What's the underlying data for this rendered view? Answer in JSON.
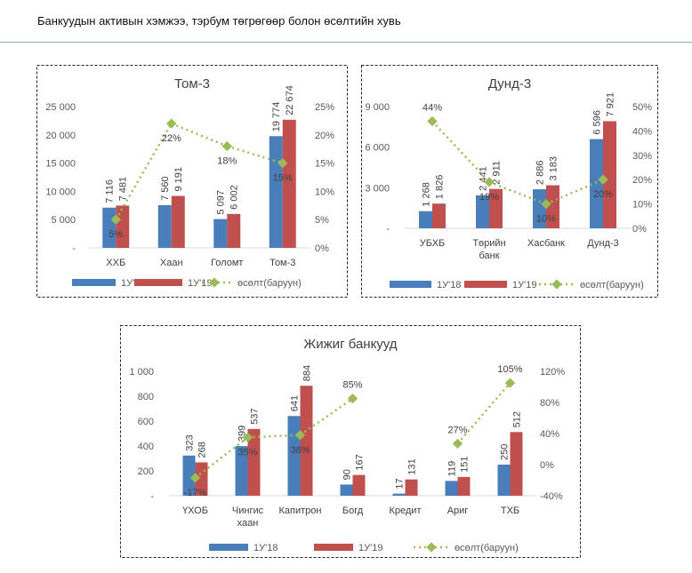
{
  "page_title": "Банкуудын активын хэмжээ, тэрбум төгрөгөөр болон өсөлтийн хувь",
  "colors": {
    "s1": "#4a7ebb",
    "s2": "#c0504d",
    "growth": "#9bbb59"
  },
  "chart_data": [
    {
      "type": "bar",
      "title": "Том-3",
      "categories": [
        [
          "ХХБ"
        ],
        [
          "Хаан"
        ],
        [
          "Голомт"
        ],
        [
          "Том-3"
        ]
      ],
      "series": [
        {
          "name": "1У'18",
          "values": [
            7116,
            7560,
            5097,
            19774
          ]
        },
        {
          "name": "1У'19",
          "values": [
            7481,
            9191,
            6002,
            22674
          ]
        },
        {
          "name": "өсөлт(баруун)",
          "type": "line",
          "axis": "right",
          "values": [
            5,
            22,
            18,
            15
          ]
        }
      ],
      "labels": {
        "s1": [
          "7 116",
          "7 560",
          "5 097",
          "19 774"
        ],
        "s2": [
          "7 481",
          "9 191",
          "6 002",
          "22 674"
        ],
        "g": [
          "5%",
          "22%",
          "18%",
          "15%"
        ]
      },
      "ylim": [
        0,
        25000
      ],
      "yticks": [
        "-",
        "5 000",
        "10 000",
        "15 000",
        "20 000",
        "25 000"
      ],
      "y2lim": [
        0,
        25
      ],
      "y2ticks": [
        "0%",
        "5%",
        "10%",
        "15%",
        "20%",
        "25%"
      ],
      "legend": "bottom"
    },
    {
      "type": "bar",
      "title": "Дунд-3",
      "categories": [
        [
          "УБХБ"
        ],
        [
          "Төрийн",
          "банк"
        ],
        [
          "Хасбанк"
        ],
        [
          "Дунд-3"
        ]
      ],
      "series": [
        {
          "name": "1У'18",
          "values": [
            1268,
            2441,
            2886,
            6596
          ]
        },
        {
          "name": "1У'19",
          "values": [
            1826,
            2911,
            3183,
            7921
          ]
        },
        {
          "name": "өсөлт(баруун)",
          "type": "line",
          "axis": "right",
          "values": [
            44,
            19,
            10,
            20
          ]
        }
      ],
      "labels": {
        "s1": [
          "1 268",
          "2 441",
          "2 886",
          "6 596"
        ],
        "s2": [
          "1 826",
          "2 911",
          "3 183",
          "7 921"
        ],
        "g": [
          "44%",
          "19%",
          "10%",
          "20%"
        ]
      },
      "ylim": [
        0,
        9000
      ],
      "yticks": [
        "-",
        "3 000",
        "6 000",
        "9 000"
      ],
      "y2lim": [
        0,
        50
      ],
      "y2ticks": [
        "0%",
        "10%",
        "20%",
        "30%",
        "40%",
        "50%"
      ],
      "legend": "bottom"
    },
    {
      "type": "bar",
      "title": "Жижиг банкууд",
      "categories": [
        [
          "ҮХОБ"
        ],
        [
          "Чингис",
          "хаан"
        ],
        [
          "Капитрон"
        ],
        [
          "Богд"
        ],
        [
          "Кредит"
        ],
        [
          "Ариг"
        ],
        [
          "ТХБ"
        ]
      ],
      "series": [
        {
          "name": "1У'18",
          "values": [
            323,
            399,
            641,
            90,
            17,
            119,
            250
          ]
        },
        {
          "name": "1У'19",
          "values": [
            268,
            537,
            884,
            167,
            131,
            151,
            512
          ]
        },
        {
          "name": "өсөлт(баруун)",
          "type": "line",
          "axis": "right",
          "values": [
            -17,
            35,
            38,
            85,
            null,
            27,
            105
          ]
        }
      ],
      "labels": {
        "s1": [
          "323",
          "399",
          "641",
          "90",
          "17",
          "119",
          "250"
        ],
        "s2": [
          "268",
          "537",
          "884",
          "167",
          "131",
          "151",
          "512"
        ],
        "g": [
          "-17%",
          "35%",
          "38%",
          "85%",
          "",
          "27%",
          "105%"
        ]
      },
      "ylim": [
        0,
        1000
      ],
      "yticks": [
        "-",
        "200",
        "400",
        "600",
        "800",
        "1 000"
      ],
      "y2lim": [
        -40,
        120
      ],
      "y2ticks": [
        "-40%",
        "0%",
        "40%",
        "80%",
        "120%"
      ],
      "legend": "bottom"
    }
  ]
}
